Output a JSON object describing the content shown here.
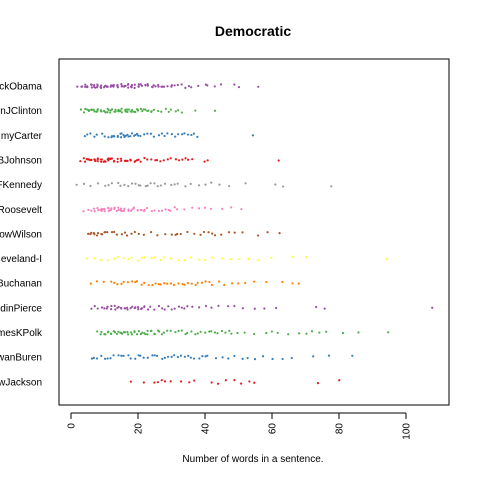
{
  "chart_data": {
    "type": "scatter",
    "title": "Democratic",
    "xlabel": "Number of words in a sentence.",
    "ylabel": "",
    "xlim": [
      -3,
      110
    ],
    "xticks": [
      0,
      20,
      40,
      60,
      80,
      100
    ],
    "xtick_labels": [
      "0",
      "20",
      "40",
      "60",
      "80",
      "100"
    ],
    "grid": false,
    "legend": "none",
    "categories": [
      {
        "label": "ckObama",
        "color": "#984ea3",
        "values": [
          2,
          3,
          3,
          4,
          4,
          5,
          5,
          5,
          6,
          6,
          6,
          7,
          7,
          7,
          8,
          8,
          8,
          9,
          9,
          9,
          10,
          10,
          10,
          11,
          11,
          11,
          12,
          12,
          12,
          13,
          13,
          13,
          14,
          14,
          14,
          15,
          15,
          15,
          16,
          16,
          16,
          17,
          17,
          17,
          18,
          18,
          18,
          19,
          19,
          20,
          20,
          20,
          21,
          21,
          22,
          22,
          23,
          23,
          24,
          24,
          25,
          25,
          26,
          26,
          27,
          27,
          28,
          29,
          30,
          30,
          31,
          32,
          33,
          34,
          35,
          36,
          38,
          40,
          41,
          43,
          45,
          49,
          50,
          56
        ]
      },
      {
        "label": "nJClinton",
        "color": "#4daf4a",
        "values": [
          3,
          4,
          4,
          5,
          5,
          5,
          6,
          6,
          6,
          7,
          7,
          7,
          8,
          8,
          8,
          9,
          9,
          9,
          10,
          10,
          10,
          11,
          11,
          11,
          12,
          12,
          12,
          13,
          13,
          13,
          14,
          14,
          14,
          15,
          15,
          15,
          16,
          16,
          16,
          17,
          17,
          17,
          18,
          18,
          18,
          19,
          19,
          20,
          20,
          20,
          21,
          21,
          22,
          22,
          23,
          23,
          24,
          24,
          25,
          26,
          27,
          28,
          29,
          30,
          31,
          32,
          33,
          37,
          43
        ]
      },
      {
        "label": "myCarter",
        "color": "#377eb8",
        "values": [
          4,
          5,
          6,
          7,
          8,
          9,
          10,
          11,
          12,
          12,
          13,
          13,
          14,
          14,
          15,
          15,
          15,
          16,
          16,
          16,
          17,
          17,
          18,
          18,
          19,
          19,
          20,
          20,
          21,
          22,
          23,
          24,
          25,
          26,
          27,
          28,
          29,
          30,
          31,
          32,
          33,
          34,
          35,
          36,
          37,
          38,
          54
        ]
      },
      {
        "label": "BJohnson",
        "color": "#e41a1c",
        "values": [
          3,
          4,
          4,
          5,
          5,
          5,
          6,
          6,
          6,
          7,
          7,
          7,
          8,
          8,
          8,
          9,
          9,
          9,
          10,
          10,
          10,
          11,
          11,
          11,
          12,
          12,
          12,
          13,
          13,
          14,
          14,
          15,
          15,
          16,
          16,
          17,
          17,
          18,
          18,
          19,
          19,
          20,
          20,
          21,
          22,
          23,
          24,
          25,
          26,
          27,
          28,
          29,
          30,
          31,
          32,
          33,
          34,
          35,
          36,
          40,
          41,
          62
        ]
      },
      {
        "label": "FKennedy",
        "color": "#999999",
        "values": [
          2,
          4,
          6,
          8,
          10,
          11,
          12,
          14,
          15,
          16,
          17,
          18,
          19,
          20,
          21,
          22,
          23,
          24,
          25,
          26,
          27,
          28,
          30,
          31,
          32,
          34,
          36,
          38,
          40,
          42,
          44,
          47,
          52,
          61,
          63,
          78
        ]
      },
      {
        "label": "Roosevelt",
        "color": "#f781bf",
        "values": [
          4,
          5,
          6,
          7,
          7,
          8,
          8,
          8,
          9,
          9,
          9,
          10,
          10,
          10,
          11,
          11,
          11,
          12,
          12,
          12,
          13,
          13,
          13,
          14,
          14,
          14,
          15,
          15,
          15,
          16,
          16,
          16,
          17,
          17,
          18,
          18,
          19,
          19,
          20,
          20,
          21,
          21,
          22,
          22,
          23,
          24,
          25,
          26,
          27,
          28,
          29,
          30,
          31,
          32,
          34,
          36,
          38,
          40,
          42,
          45,
          48,
          51
        ]
      },
      {
        "label": "owWilson",
        "color": "#a65628",
        "values": [
          5,
          6,
          6,
          7,
          7,
          8,
          8,
          9,
          9,
          10,
          10,
          11,
          12,
          13,
          14,
          15,
          16,
          17,
          18,
          19,
          20,
          22,
          24,
          26,
          28,
          30,
          31,
          32,
          33,
          35,
          37,
          39,
          40,
          41,
          42,
          43,
          45,
          47,
          49,
          51,
          56,
          59,
          62
        ]
      },
      {
        "label": "eveland-I",
        "color": "#ffff33",
        "values": [
          5,
          7,
          9,
          11,
          13,
          14,
          16,
          17,
          18,
          20,
          21,
          22,
          24,
          25,
          27,
          28,
          30,
          32,
          34,
          36,
          38,
          40,
          42,
          45,
          48,
          50,
          53,
          56,
          60,
          66,
          70,
          94
        ]
      },
      {
        "label": "Buchanan",
        "color": "#ff7f00",
        "values": [
          6,
          8,
          10,
          12,
          13,
          14,
          15,
          16,
          17,
          18,
          19,
          20,
          21,
          22,
          23,
          24,
          25,
          26,
          27,
          28,
          29,
          30,
          31,
          32,
          33,
          34,
          35,
          36,
          37,
          38,
          39,
          40,
          41,
          42,
          44,
          46,
          48,
          50,
          52,
          55,
          58,
          63,
          66,
          68
        ]
      },
      {
        "label": "dinPierce",
        "color": "#984ea3",
        "values": [
          6,
          7,
          8,
          9,
          10,
          11,
          11,
          12,
          12,
          13,
          13,
          14,
          14,
          15,
          15,
          16,
          16,
          17,
          17,
          18,
          18,
          19,
          19,
          20,
          20,
          21,
          21,
          22,
          22,
          23,
          24,
          25,
          26,
          27,
          28,
          29,
          30,
          31,
          32,
          33,
          34,
          35,
          36,
          38,
          40,
          42,
          44,
          47,
          49,
          51,
          55,
          58,
          61,
          73,
          76,
          108
        ]
      },
      {
        "label": "mesKPolk",
        "color": "#4daf4a",
        "values": [
          8,
          9,
          9,
          10,
          10,
          11,
          11,
          12,
          12,
          13,
          13,
          14,
          14,
          15,
          15,
          15,
          16,
          16,
          17,
          17,
          18,
          18,
          19,
          19,
          20,
          20,
          21,
          21,
          22,
          22,
          23,
          23,
          24,
          24,
          25,
          25,
          26,
          26,
          27,
          28,
          29,
          30,
          31,
          32,
          33,
          34,
          35,
          36,
          37,
          38,
          39,
          40,
          41,
          42,
          43,
          44,
          45,
          46,
          47,
          48,
          50,
          52,
          55,
          58,
          60,
          62,
          65,
          68,
          70,
          72,
          74,
          76,
          81,
          86,
          95
        ]
      },
      {
        "label": "wanBuren",
        "color": "#377eb8",
        "values": [
          6,
          7,
          8,
          9,
          10,
          11,
          12,
          13,
          14,
          15,
          16,
          17,
          18,
          19,
          20,
          21,
          22,
          23,
          24,
          25,
          26,
          27,
          28,
          29,
          30,
          31,
          32,
          33,
          34,
          35,
          36,
          37,
          38,
          39,
          40,
          41,
          43,
          45,
          47,
          49,
          51,
          53,
          55,
          57,
          60,
          63,
          66,
          72,
          77,
          84
        ]
      },
      {
        "label": "wJackson",
        "color": "#e41a1c",
        "values": [
          18,
          22,
          25,
          26,
          27,
          28,
          30,
          33,
          35,
          37,
          42,
          44,
          46,
          49,
          51,
          53,
          55,
          74,
          80
        ]
      }
    ]
  }
}
